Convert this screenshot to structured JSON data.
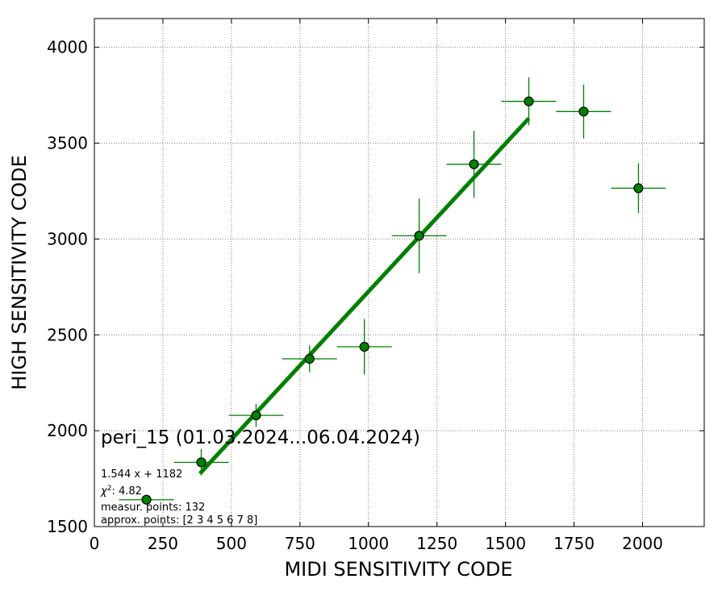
{
  "chart_data": {
    "type": "scatter",
    "xlabel": "MIDI SENSITIVITY CODE",
    "ylabel": "HIGH SENSITIVITY CODE",
    "xlim": [
      0,
      2225
    ],
    "ylim": [
      1500,
      4150
    ],
    "x_ticks": [
      0,
      250,
      500,
      750,
      1000,
      1250,
      1500,
      1750,
      2000
    ],
    "y_ticks": [
      1500,
      2000,
      2500,
      3000,
      3500,
      4000
    ],
    "x_tick_labels": [
      "0",
      "250",
      "500",
      "750",
      "1000",
      "1250",
      "1500",
      "1750",
      "2000"
    ],
    "y_tick_labels": [
      "1500",
      "2000",
      "2500",
      "3000",
      "3500",
      "4000"
    ],
    "grid": true,
    "points": [
      {
        "x": 190,
        "y": 1640,
        "xerr": 100,
        "yerr": 0
      },
      {
        "x": 390,
        "y": 1835,
        "xerr": 100,
        "yerr": 70
      },
      {
        "x": 590,
        "y": 2080,
        "xerr": 100,
        "yerr": 60
      },
      {
        "x": 785,
        "y": 2375,
        "xerr": 100,
        "yerr": 70
      },
      {
        "x": 985,
        "y": 2438,
        "xerr": 100,
        "yerr": 145
      },
      {
        "x": 1185,
        "y": 3017,
        "xerr": 100,
        "yerr": 195
      },
      {
        "x": 1385,
        "y": 3390,
        "xerr": 100,
        "yerr": 175
      },
      {
        "x": 1585,
        "y": 3718,
        "xerr": 100,
        "yerr": 125
      },
      {
        "x": 1785,
        "y": 3665,
        "xerr": 100,
        "yerr": 140
      },
      {
        "x": 1985,
        "y": 3265,
        "xerr": 100,
        "yerr": 130
      }
    ],
    "fit": {
      "slope": 1.544,
      "intercept": 1182,
      "x_range": [
        385,
        1585
      ]
    },
    "colors": {
      "marker": "#008000",
      "errorbar": "#008000",
      "fit": "#008000",
      "marker_edge": "#000000"
    }
  },
  "annotations": {
    "title": "peri_15 (01.03.2024...06.04.2024)",
    "equation": "1.544 x + 1182",
    "chi_label": "χ",
    "chi_sup": "2",
    "chi_value": ": 4.82",
    "measur_points": "measur. points: 132",
    "approx_points": "approx. points: [2 3 4 5 6 7 8]"
  }
}
